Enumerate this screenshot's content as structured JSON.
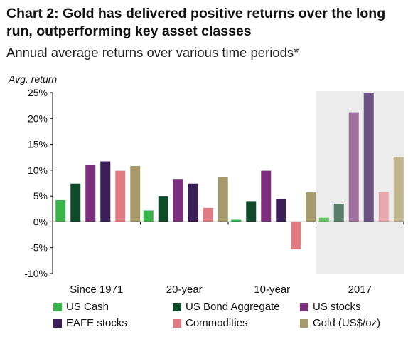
{
  "header": {
    "title": "Chart 2: Gold has delivered positive returns over the long run, outperforming key asset classes",
    "subtitle": "Annual average returns over various time periods*"
  },
  "chart_data": {
    "type": "bar",
    "ylabel": "Avg.  return",
    "ylim": [
      -10,
      25
    ],
    "yticks": [
      "25%",
      "20%",
      "15%",
      "10%",
      "5%",
      "0%",
      "-5%",
      "-10%"
    ],
    "ytick_values": [
      25,
      20,
      15,
      10,
      5,
      0,
      -5,
      -10
    ],
    "categories": [
      "Since 1971",
      "20-year",
      "10-year",
      "2017"
    ],
    "highlighted_category": "2017",
    "highlight_color": "#ececec",
    "series": [
      {
        "name": "US Cash",
        "color": "#3ab44a",
        "highlight_color": "#6fbf70",
        "values": [
          4.2,
          2.2,
          0.4,
          0.8
        ]
      },
      {
        "name": "US Bond Aggregate",
        "color": "#0f4a2b",
        "highlight_color": "#5a7f68",
        "values": [
          7.4,
          5.0,
          4.0,
          3.5
        ]
      },
      {
        "name": "US stocks",
        "color": "#7b2f7d",
        "highlight_color": "#a0709f",
        "values": [
          11.0,
          8.3,
          9.9,
          21.2
        ]
      },
      {
        "name": "EAFE stocks",
        "color": "#3b1f58",
        "highlight_color": "#6a5283",
        "values": [
          11.7,
          7.4,
          4.4,
          25.0
        ]
      },
      {
        "name": "Commodities",
        "color": "#e07b84",
        "highlight_color": "#e7a7ad",
        "values": [
          9.9,
          2.7,
          -5.3,
          5.8
        ]
      },
      {
        "name": "Gold (US$/oz)",
        "color": "#a79a6a",
        "highlight_color": "#bfb48e",
        "values": [
          10.8,
          8.7,
          5.7,
          12.6
        ]
      }
    ]
  }
}
